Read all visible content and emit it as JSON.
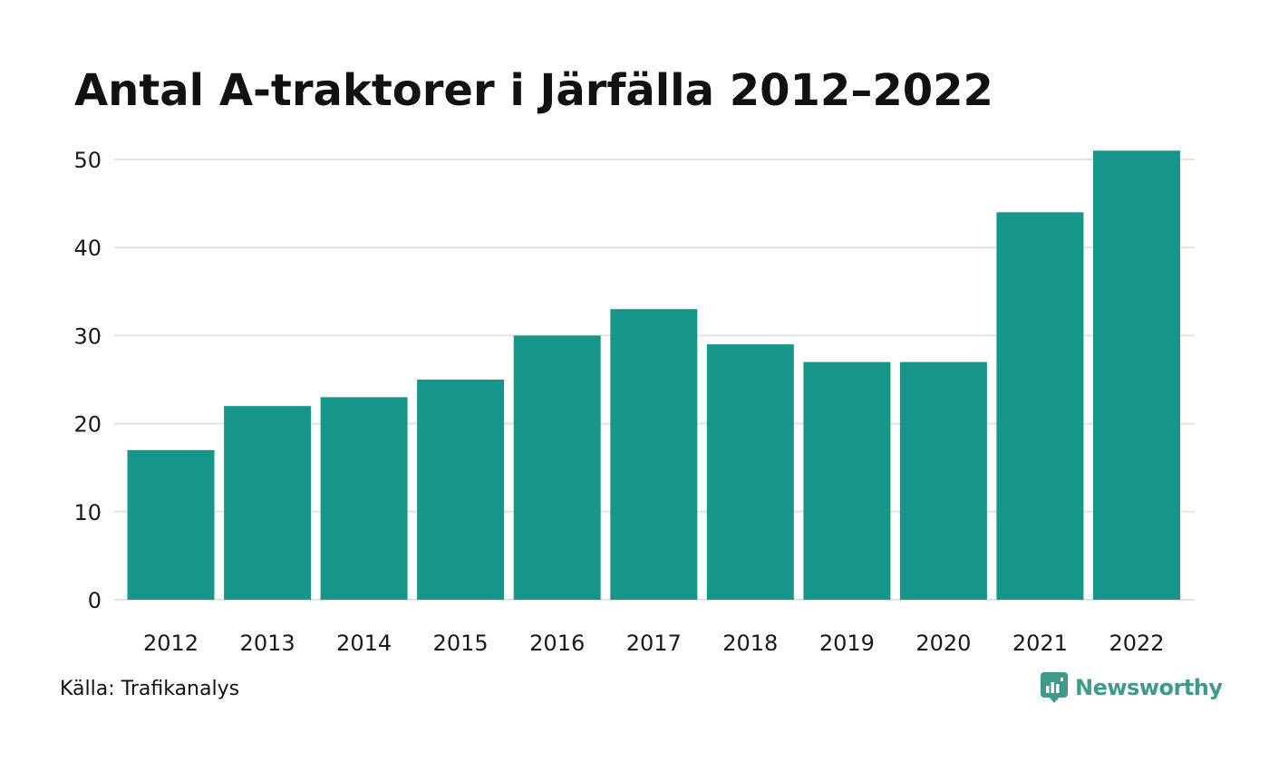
{
  "title": "Antal A-traktorer i Järfälla 2012–2022",
  "source": "Källa: Trafikanalys",
  "brand": {
    "name": "Newsworthy",
    "icon": "newsworthy-logo-icon",
    "color": "#3f9a8c"
  },
  "colors": {
    "bar": "#159688",
    "grid": "#e3e3e3"
  },
  "chart_data": {
    "type": "bar",
    "title": "Antal A-traktorer i Järfälla 2012–2022",
    "xlabel": "",
    "ylabel": "",
    "categories": [
      "2012",
      "2013",
      "2014",
      "2015",
      "2016",
      "2017",
      "2018",
      "2019",
      "2020",
      "2021",
      "2022"
    ],
    "values": [
      17,
      22,
      23,
      25,
      30,
      33,
      29,
      27,
      27,
      44,
      51
    ],
    "ylim": [
      0,
      50
    ],
    "yticks": [
      0,
      10,
      20,
      30,
      40,
      50
    ],
    "grid": true,
    "legend": "none"
  }
}
